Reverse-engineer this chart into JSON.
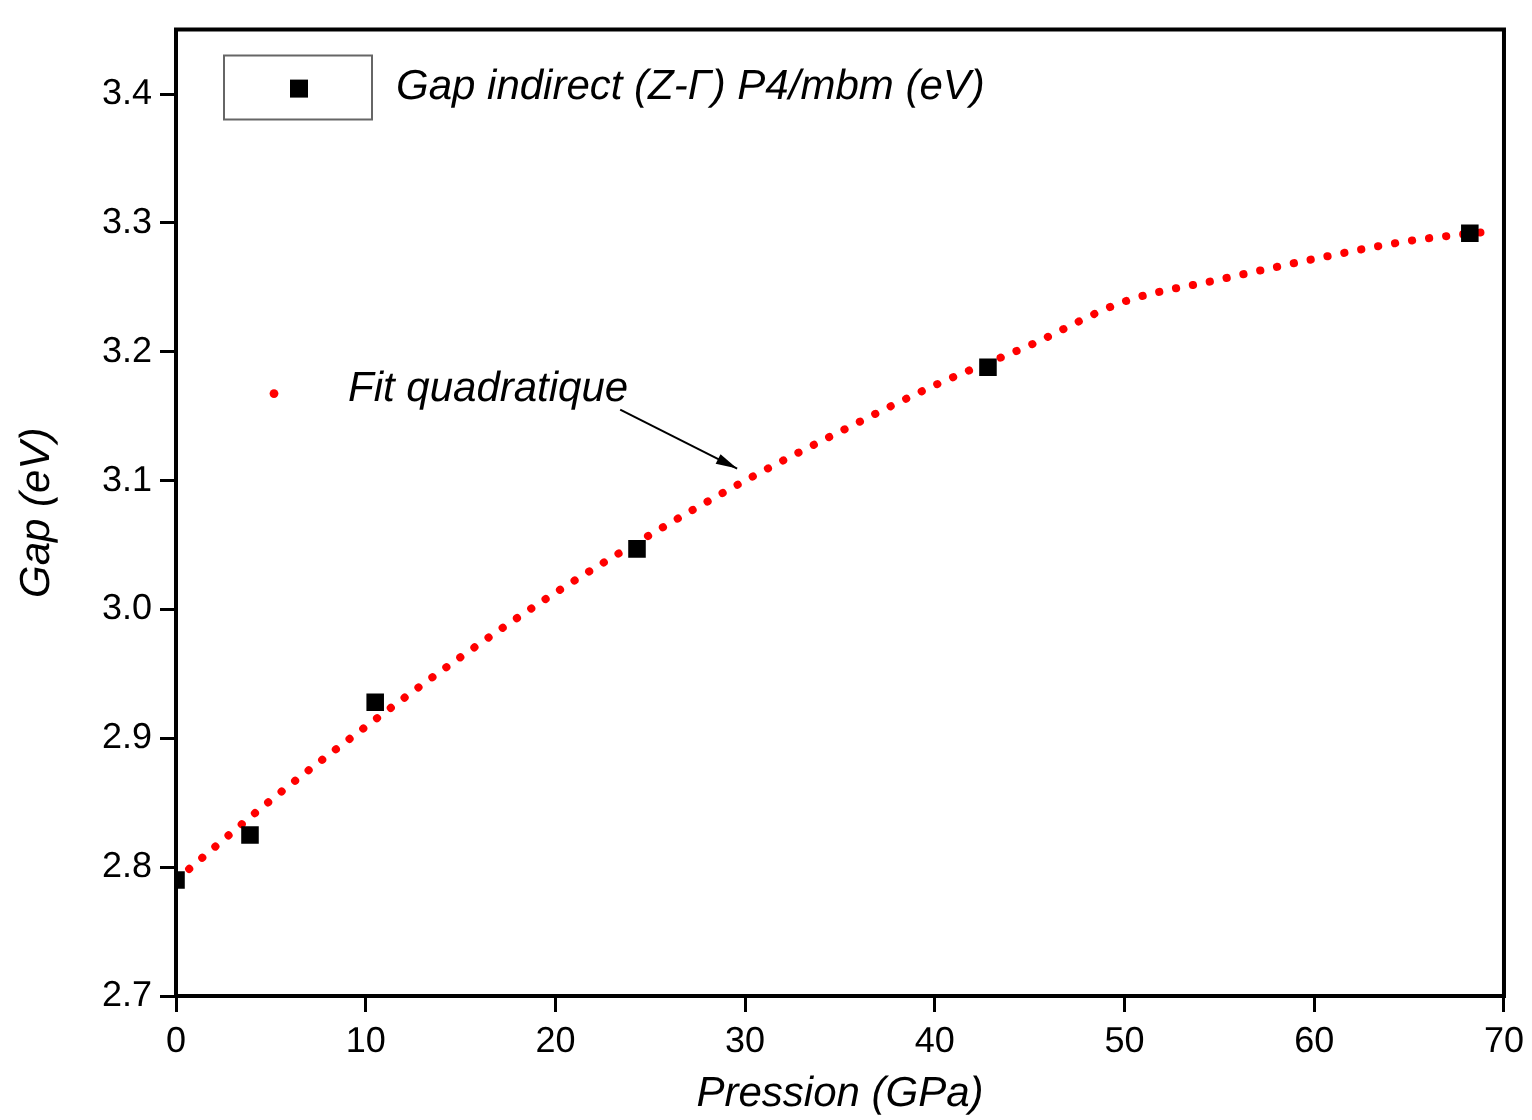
{
  "chart_data": {
    "type": "scatter",
    "xlabel": "Pression (GPa)",
    "ylabel": "Gap (eV)",
    "xlim": [
      0,
      70
    ],
    "xticks": [
      0,
      10,
      20,
      30,
      40,
      50,
      60,
      70
    ],
    "ylim": [
      2.7,
      3.45
    ],
    "yticks": [
      {
        "value": 2.7,
        "label": "2.7"
      },
      {
        "value": 2.8,
        "label": "2.8"
      },
      {
        "value": 2.9,
        "label": "2.9"
      },
      {
        "value": 3.0,
        "label": "3.0"
      },
      {
        "value": 3.1,
        "label": "3.1"
      },
      {
        "value": 3.2,
        "label": "3.2"
      },
      {
        "value": 3.3,
        "label": "3.3"
      },
      {
        "value": 3.4,
        "label": "3.4"
      }
    ],
    "legend": "top left",
    "grid": false,
    "series": [
      {
        "name": "Gap indirect (Z-Γ) P4/mbm (eV)",
        "marker": "square",
        "color": "#000000",
        "x": [
          0,
          3.9,
          10.5,
          24.3,
          42.8,
          68.2
        ],
        "values": [
          2.79,
          2.825,
          2.928,
          3.047,
          3.188,
          3.292
        ]
      },
      {
        "name": "Fit quadratique",
        "type": "line",
        "marker": "none",
        "line_style": "dotted",
        "color": "#ff0000",
        "x": [
          0,
          5,
          10,
          15,
          20,
          25,
          30,
          35,
          40,
          45,
          50,
          55,
          60,
          65,
          69
        ],
        "values": [
          2.79,
          2.852,
          2.909,
          2.963,
          3.013,
          3.058,
          3.1,
          3.138,
          3.174,
          3.205,
          3.239,
          3.256,
          3.272,
          3.286,
          3.293
        ]
      }
    ]
  }
}
